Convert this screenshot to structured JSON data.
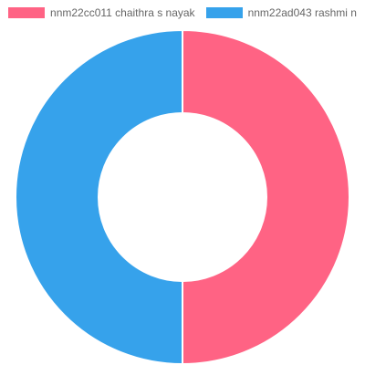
{
  "chart_data": {
    "type": "pie",
    "donut": true,
    "labels": [
      "nnm22cc011 chaithra s nayak",
      "nnm22ad043 rashmi n"
    ],
    "values": [
      50,
      50
    ],
    "colors": [
      "#ff6384",
      "#36a2eb"
    ],
    "legend": "top"
  }
}
